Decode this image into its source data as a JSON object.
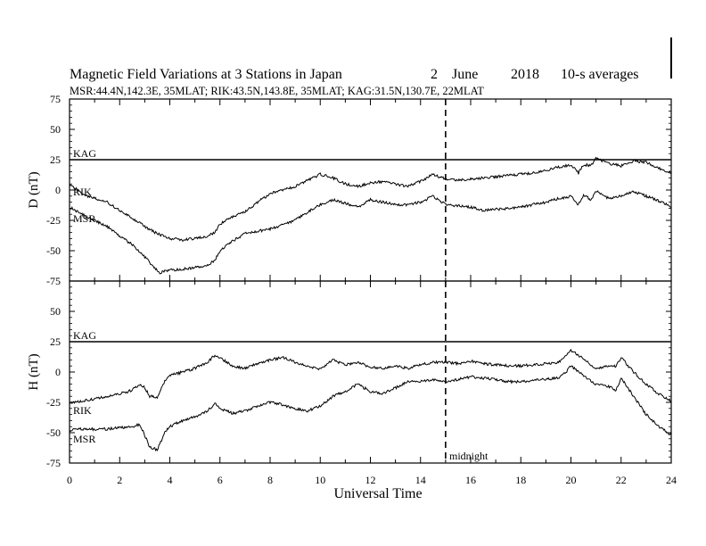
{
  "header": {
    "title": "Magnetic Field Variations at 3 Stations in Japan",
    "day": "2",
    "month": "June",
    "year": "2018",
    "resolution": "10-s averages",
    "stations": "MSR:44.4N,142.3E, 35MLAT;  RIK:43.5N,143.8E, 35MLAT;  KAG:31.5N,130.7E, 22MLAT"
  },
  "chart_data": [
    {
      "type": "line",
      "ylabel": "D (nT)",
      "ylim": [
        -75,
        75
      ],
      "yticks": [
        "75",
        "50",
        "25",
        "0",
        "-25",
        "-50",
        "-75"
      ],
      "xlim": [
        0,
        24
      ],
      "grid": false,
      "series": [
        {
          "name": "KAG",
          "x": [
            0,
            24
          ],
          "values": [
            25,
            25
          ]
        },
        {
          "name": "RIK",
          "x": [
            0,
            0.5,
            1,
            1.5,
            2,
            2.5,
            3,
            3.5,
            4,
            4.5,
            5,
            5.5,
            5.8,
            6,
            6.5,
            7,
            7.5,
            8,
            8.5,
            9,
            9.5,
            10,
            10.5,
            11,
            11.5,
            12,
            12.5,
            13,
            13.5,
            14,
            14.5,
            15,
            15.5,
            16,
            16.5,
            17,
            17.5,
            18,
            18.5,
            19,
            19.5,
            20,
            20.3,
            20.5,
            20.8,
            21,
            21.5,
            22,
            22.5,
            23,
            23.5,
            24
          ],
          "values": [
            5,
            -3,
            -7,
            -10,
            -17,
            -23,
            -30,
            -36,
            -40,
            -41,
            -40,
            -38,
            -35,
            -28,
            -22,
            -18,
            -10,
            -3,
            0,
            3,
            8,
            13,
            10,
            5,
            3,
            6,
            7,
            5,
            3,
            7,
            13,
            9,
            8,
            9,
            10,
            11,
            12,
            13,
            14,
            16,
            19,
            21,
            14,
            21,
            20,
            26,
            22,
            20,
            24,
            23,
            18,
            14
          ]
        },
        {
          "name": "MSR",
          "x": [
            0,
            0.5,
            1,
            1.5,
            2,
            2.5,
            3,
            3.3,
            3.6,
            4,
            4.5,
            5,
            5.5,
            5.8,
            6,
            6.5,
            7,
            7.5,
            8,
            8.5,
            9,
            9.5,
            10,
            10.5,
            11,
            11.5,
            12,
            12.5,
            13,
            13.5,
            14,
            14.5,
            15,
            15.5,
            16,
            16.5,
            17,
            17.5,
            18,
            18.5,
            19,
            19.5,
            20,
            20.3,
            20.5,
            20.8,
            21,
            21.5,
            22,
            22.5,
            23,
            23.5,
            24
          ],
          "values": [
            -14,
            -20,
            -25,
            -30,
            -38,
            -45,
            -55,
            -62,
            -68,
            -66,
            -65,
            -64,
            -62,
            -58,
            -50,
            -42,
            -36,
            -34,
            -32,
            -29,
            -25,
            -18,
            -12,
            -8,
            -11,
            -14,
            -8,
            -10,
            -12,
            -12,
            -10,
            -5,
            -12,
            -13,
            -14,
            -17,
            -16,
            -15,
            -14,
            -12,
            -10,
            -7,
            -5,
            -12,
            -4,
            -8,
            -1,
            -7,
            -5,
            -1,
            -5,
            -9,
            -14
          ]
        }
      ]
    },
    {
      "type": "line",
      "ylabel": "H (nT)",
      "ylim": [
        -75,
        75
      ],
      "yticks": [
        "75",
        "50",
        "25",
        "0",
        "-25",
        "-50",
        "-75"
      ],
      "xlim": [
        0,
        24
      ],
      "xlabel": "Universal Time",
      "xticks": [
        "0",
        "2",
        "4",
        "6",
        "8",
        "10",
        "12",
        "14",
        "16",
        "18",
        "20",
        "22",
        "24"
      ],
      "annotation": "midnight",
      "annotation_x": 15,
      "grid": false,
      "series": [
        {
          "name": "KAG",
          "x": [
            0,
            24
          ],
          "values": [
            25,
            25
          ]
        },
        {
          "name": "RIK",
          "x": [
            0,
            0.5,
            1,
            1.5,
            2,
            2.5,
            2.8,
            3,
            3.2,
            3.5,
            3.8,
            4,
            4.5,
            5,
            5.5,
            5.8,
            6,
            6.5,
            7,
            7.5,
            8,
            8.5,
            9,
            9.5,
            10,
            10.5,
            11,
            11.5,
            12,
            12.5,
            13,
            13.5,
            14,
            14.5,
            15,
            15.5,
            16,
            16.5,
            17,
            17.5,
            18,
            18.5,
            19,
            19.5,
            19.8,
            20,
            20.5,
            21,
            21.5,
            21.8,
            22,
            22.5,
            23,
            23.5,
            24
          ],
          "values": [
            -25,
            -24,
            -22,
            -20,
            -18,
            -15,
            -10,
            -13,
            -20,
            -21,
            -8,
            -3,
            0,
            3,
            8,
            14,
            12,
            5,
            3,
            7,
            10,
            12,
            8,
            5,
            2,
            10,
            6,
            8,
            4,
            3,
            5,
            3,
            6,
            8,
            8,
            7,
            9,
            7,
            6,
            5,
            5,
            6,
            7,
            8,
            13,
            18,
            11,
            3,
            5,
            5,
            12,
            0,
            -10,
            -18,
            -24
          ]
        },
        {
          "name": "MSR",
          "x": [
            0,
            0.5,
            1,
            1.5,
            2,
            2.5,
            2.8,
            3,
            3.2,
            3.5,
            3.8,
            4,
            4.5,
            5,
            5.5,
            5.8,
            6,
            6.5,
            7,
            7.5,
            8,
            8.5,
            9,
            9.5,
            10,
            10.5,
            11,
            11.5,
            12,
            12.5,
            13,
            13.5,
            14,
            14.5,
            15,
            15.5,
            16,
            16.5,
            17,
            17.5,
            18,
            18.5,
            19,
            19.5,
            19.8,
            20,
            20.5,
            21,
            21.5,
            21.8,
            22,
            22.5,
            23,
            23.5,
            24
          ],
          "values": [
            -48,
            -47,
            -47,
            -47,
            -46,
            -45,
            -43,
            -52,
            -62,
            -64,
            -50,
            -45,
            -40,
            -37,
            -32,
            -26,
            -30,
            -34,
            -32,
            -28,
            -25,
            -27,
            -30,
            -32,
            -28,
            -20,
            -16,
            -10,
            -16,
            -18,
            -13,
            -8,
            -8,
            -6,
            -8,
            -6,
            -4,
            -5,
            -6,
            -8,
            -8,
            -7,
            -6,
            -5,
            0,
            5,
            -3,
            -10,
            -12,
            -15,
            -5,
            -20,
            -35,
            -45,
            -52
          ]
        }
      ]
    }
  ]
}
